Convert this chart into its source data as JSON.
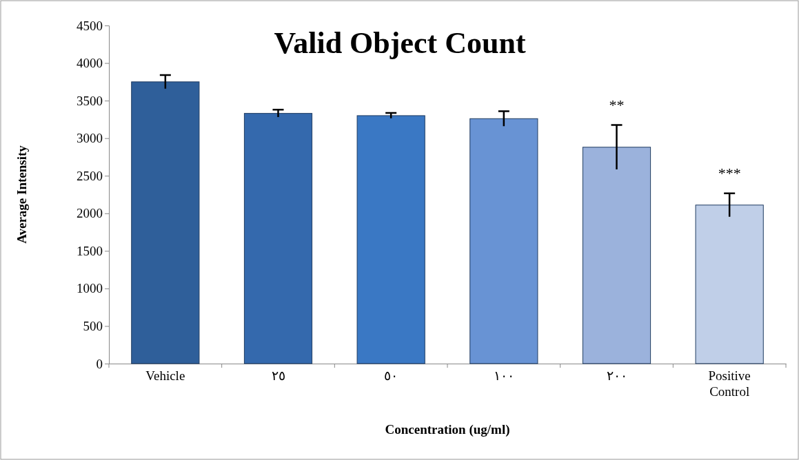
{
  "chart_data": {
    "type": "bar",
    "title": "Valid Object Count",
    "xlabel": "Concentration (ug/ml)",
    "ylabel": "Average Intensity",
    "categories": [
      "Vehicle",
      "٢٥",
      "٥٠",
      "١٠٠",
      "٢٠٠",
      "Positive Control"
    ],
    "values": [
      3750,
      3330,
      3300,
      3260,
      2880,
      2110
    ],
    "errors": [
      90,
      50,
      35,
      100,
      295,
      155
    ],
    "colors": [
      "#2f5f9a",
      "#3469ad",
      "#3a78c4",
      "#6893d4",
      "#9bb2dc",
      "#c0cfe8"
    ],
    "ylim": [
      0,
      4500
    ],
    "yticks": [
      0,
      500,
      1000,
      1500,
      2000,
      2500,
      3000,
      3500,
      4000,
      4500
    ],
    "annotations": [
      "**",
      "***"
    ],
    "grid": false
  }
}
